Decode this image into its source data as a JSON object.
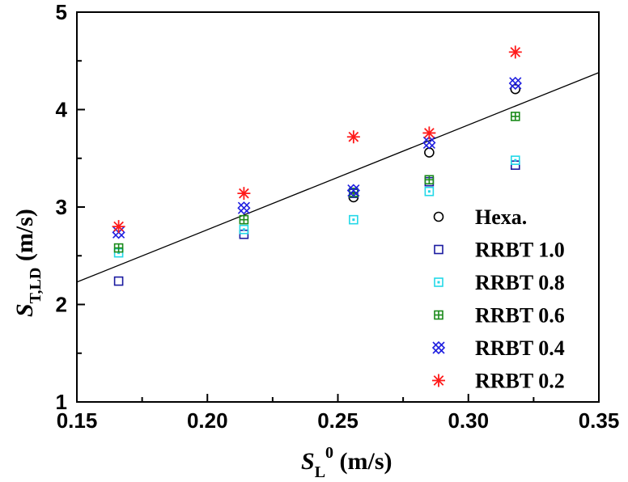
{
  "chart_data": {
    "type": "scatter",
    "xlabel": {
      "symbol": "S",
      "subscript": "L",
      "superscript": "0",
      "unit": " (m/s)"
    },
    "ylabel": {
      "symbol": "S",
      "subscript": "T,LD",
      "unit": " (m/s)"
    },
    "xlim": [
      0.15,
      0.35
    ],
    "ylim": [
      1,
      5
    ],
    "xticks": [
      0.15,
      0.2,
      0.25,
      0.3,
      0.35
    ],
    "xtick_labels": [
      "0.15",
      "0.20",
      "0.25",
      "0.30",
      "0.35"
    ],
    "yticks": [
      1,
      2,
      3,
      4,
      5
    ],
    "ytick_labels": [
      "1",
      "2",
      "3",
      "4",
      "5"
    ],
    "grid": false,
    "legend_position": "right",
    "fit_line": {
      "x": [
        0.15,
        0.35
      ],
      "y": [
        2.23,
        4.38
      ],
      "color": "#000000"
    },
    "series": [
      {
        "name": "Hexa.",
        "marker": "circle",
        "color": "#000000",
        "x": [
          0.256,
          0.285,
          0.318
        ],
        "y": [
          3.1,
          3.56,
          4.21
        ]
      },
      {
        "name": "RRBT 1.0",
        "marker": "square",
        "color": "#1a1aa0",
        "x": [
          0.166,
          0.214,
          0.256,
          0.285,
          0.318
        ],
        "y": [
          2.24,
          2.72,
          3.14,
          3.26,
          3.43
        ]
      },
      {
        "name": "RRBT 0.8",
        "marker": "square-dot",
        "color": "#22d8e8",
        "x": [
          0.166,
          0.214,
          0.256,
          0.285,
          0.318
        ],
        "y": [
          2.53,
          2.77,
          2.87,
          3.16,
          3.48
        ]
      },
      {
        "name": "RRBT 0.6",
        "marker": "square-plus",
        "color": "#1a8a1a",
        "x": [
          0.166,
          0.214,
          0.256,
          0.285,
          0.318
        ],
        "y": [
          2.58,
          2.87,
          3.15,
          3.28,
          3.93
        ]
      },
      {
        "name": "RRBT 0.4",
        "marker": "x-diamond",
        "color": "#2020e0",
        "x": [
          0.166,
          0.214,
          0.256,
          0.285,
          0.318
        ],
        "y": [
          2.74,
          2.99,
          3.17,
          3.66,
          4.27
        ]
      },
      {
        "name": "RRBT 0.2",
        "marker": "asterisk",
        "color": "#ff1a1a",
        "x": [
          0.166,
          0.214,
          0.256,
          0.285,
          0.318
        ],
        "y": [
          2.8,
          3.14,
          3.72,
          3.76,
          4.59
        ]
      }
    ]
  }
}
